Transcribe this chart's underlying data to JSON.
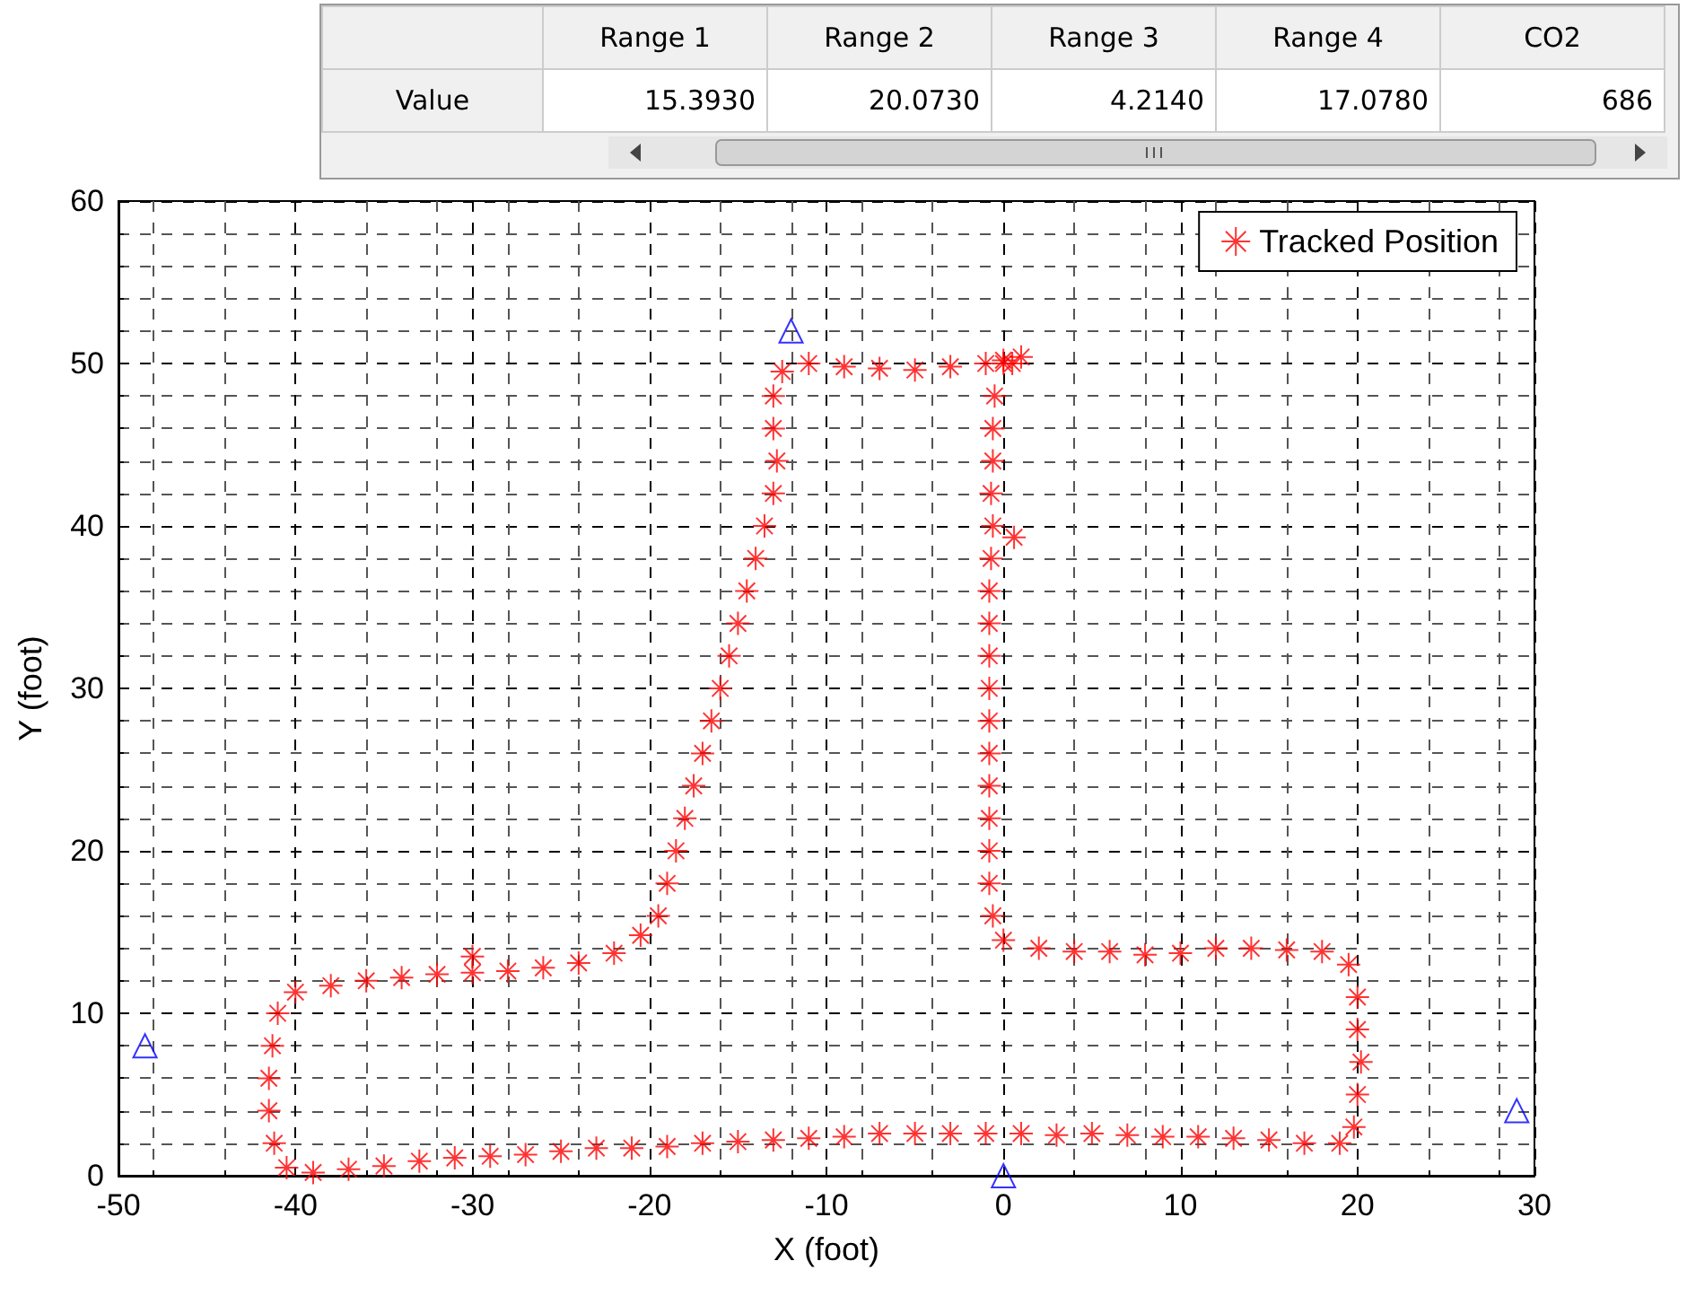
{
  "chart_data": {
    "type": "scatter",
    "xlabel": "X (foot)",
    "ylabel": "Y (foot)",
    "xlim": [
      -50,
      30
    ],
    "xticks": [
      -50,
      -40,
      -30,
      -20,
      -10,
      0,
      10,
      20,
      30
    ],
    "ylim": [
      0,
      60
    ],
    "yticks": [
      0,
      10,
      20,
      30,
      40,
      50,
      60
    ],
    "grid": true,
    "legend": "top right",
    "annotations": [
      "Range 1",
      "Range 2",
      "Range 3",
      "Range 4",
      "CO2",
      "Value",
      "15.3930",
      "20.0730",
      "4.2140",
      "17.0780",
      "686"
    ],
    "series": [
      {
        "name": "Tracked Position",
        "color": "#ff0000",
        "marker": "cross",
        "x": [
          0,
          -0.5,
          -0.6,
          -0.6,
          -0.7,
          -0.6,
          0.6,
          -0.7,
          -0.8,
          -0.8,
          -0.8,
          -0.8,
          -0.8,
          -0.8,
          -0.8,
          -0.8,
          -0.8,
          -0.8,
          -0.6,
          0,
          2,
          4,
          6,
          8,
          10,
          12,
          14,
          16,
          18,
          19.5,
          20,
          20,
          20.2,
          20,
          19.8,
          19,
          17,
          15,
          13,
          11,
          9,
          7,
          5,
          3,
          1,
          -1,
          -3,
          -5,
          -7,
          -9,
          -11,
          -13,
          -15,
          -17,
          -19,
          -21,
          -23,
          -25,
          -27,
          -29,
          -31,
          -33,
          -35,
          -37,
          -39,
          -40.5,
          -41.2,
          -41.5,
          -41.5,
          -41.3,
          -41,
          -40,
          -38,
          -36,
          -34,
          -32,
          -30,
          -30,
          -28,
          -26,
          -24,
          -22,
          -20.5,
          -19.5,
          -19,
          -18.5,
          -18,
          -17.5,
          -17,
          -16.5,
          -16,
          -15.5,
          -15,
          -14.5,
          -14,
          -13.5,
          -13,
          -12.8,
          -13,
          -13,
          -12.5,
          -11,
          -9,
          -7,
          -5,
          -3,
          -1,
          0,
          0.5,
          1
        ],
        "values": [
          50,
          48,
          46,
          44,
          42,
          40,
          39.3,
          38,
          36,
          34,
          32,
          30,
          28,
          26,
          24,
          22,
          20,
          18,
          16,
          14.5,
          14,
          13.8,
          13.8,
          13.6,
          13.7,
          14,
          14,
          13.9,
          13.8,
          13,
          11,
          9,
          7,
          5,
          3,
          2,
          2,
          2.2,
          2.3,
          2.4,
          2.4,
          2.5,
          2.6,
          2.5,
          2.6,
          2.6,
          2.6,
          2.6,
          2.6,
          2.4,
          2.3,
          2.2,
          2.1,
          2,
          1.8,
          1.7,
          1.7,
          1.5,
          1.3,
          1.2,
          1.1,
          0.9,
          0.6,
          0.4,
          0.2,
          0.5,
          2,
          4,
          6,
          8,
          10,
          11.3,
          11.7,
          12,
          12.2,
          12.4,
          12.5,
          13.5,
          12.6,
          12.8,
          13.1,
          13.7,
          14.8,
          16,
          18,
          20,
          22,
          24,
          26,
          28,
          30,
          32,
          34,
          36,
          38,
          40,
          42,
          44,
          46,
          48,
          49.5,
          50,
          49.8,
          49.7,
          49.6,
          49.8,
          50,
          50.2,
          50,
          50.4
        ]
      },
      {
        "color": "#0000ff",
        "marker": "triangle",
        "x": [
          -48.5,
          -12,
          0,
          29
        ],
        "values": [
          8,
          52,
          0,
          4
        ]
      }
    ]
  }
}
